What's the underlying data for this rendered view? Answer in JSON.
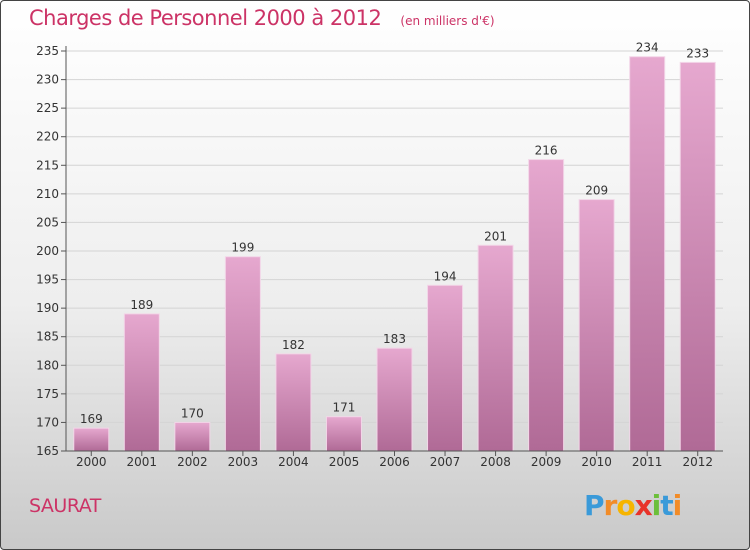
{
  "title": "Charges de Personnel 2000 à 2012",
  "subtitle": "(en milliers d'€)",
  "place": "SAURAT",
  "brand": {
    "letters": [
      "P",
      "r",
      "o",
      "x",
      "i",
      "t",
      "i"
    ],
    "colors": [
      "#3a9ad9",
      "#f28c28",
      "#f6b400",
      "#e8332a",
      "#6cbf3a",
      "#3a9ad9",
      "#f28c28"
    ]
  },
  "colors": {
    "bar_top": "#e6a8cf",
    "bar_bottom": "#b06a96",
    "accent": "#cc3366"
  },
  "chart_data": {
    "type": "bar",
    "categories": [
      "2000",
      "2001",
      "2002",
      "2003",
      "2004",
      "2005",
      "2006",
      "2007",
      "2008",
      "2009",
      "2010",
      "2011",
      "2012"
    ],
    "values": [
      169,
      189,
      170,
      199,
      182,
      171,
      183,
      194,
      201,
      216,
      209,
      234,
      233
    ],
    "ylim": [
      165,
      235
    ],
    "yticks": [
      165,
      170,
      175,
      180,
      185,
      190,
      195,
      200,
      205,
      210,
      215,
      220,
      225,
      230,
      235
    ],
    "grid": true
  }
}
